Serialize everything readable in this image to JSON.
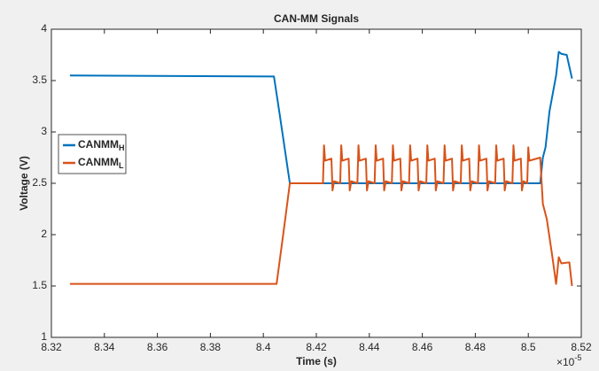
{
  "chart_data": {
    "type": "line",
    "title": "CAN-MM Signals",
    "x_label": "Time (s)",
    "y_label": "Voltage (V)",
    "x_multiplier": "×10",
    "x_multiplier_exponent": "-5",
    "xlim": [
      8.32,
      8.52
    ],
    "xticks": [
      8.32,
      8.34,
      8.36,
      8.38,
      8.4,
      8.42,
      8.44,
      8.46,
      8.48,
      8.5,
      8.52
    ],
    "ylim": [
      1,
      4
    ],
    "yticks": [
      1,
      1.5,
      2,
      2.5,
      3,
      3.5,
      4
    ],
    "grid": false,
    "legend": "left",
    "series": [
      {
        "name": "CANMM",
        "subscript": "H",
        "color": "#0072bd",
        "x": [
          8.327,
          8.404,
          8.406,
          8.41,
          8.5045,
          8.5055,
          8.5065,
          8.508,
          8.5105,
          8.5115,
          8.5125,
          8.5145,
          8.5165
        ],
        "values": [
          3.55,
          3.54,
          3.2,
          2.5,
          2.5,
          2.75,
          2.85,
          3.2,
          3.55,
          3.78,
          3.76,
          3.75,
          3.52
        ]
      },
      {
        "name": "CANMM",
        "subscript": "L",
        "color": "#d95319",
        "x": [
          8.327,
          8.405,
          8.408,
          8.41,
          8.4225,
          8.4229,
          8.4233,
          8.4257,
          8.4261,
          8.4267,
          8.429,
          8.4294,
          8.4298,
          8.4322,
          8.4326,
          8.4332,
          8.4355,
          8.4359,
          8.4363,
          8.4387,
          8.4391,
          8.4397,
          8.442,
          8.4424,
          8.4428,
          8.4452,
          8.4456,
          8.4462,
          8.4485,
          8.4489,
          8.4493,
          8.4517,
          8.4521,
          8.4527,
          8.455,
          8.4554,
          8.4558,
          8.4582,
          8.4586,
          8.4592,
          8.4615,
          8.4619,
          8.4623,
          8.4647,
          8.4651,
          8.4657,
          8.468,
          8.4684,
          8.4688,
          8.4712,
          8.4716,
          8.4722,
          8.4745,
          8.4749,
          8.4753,
          8.4777,
          8.4781,
          8.4787,
          8.481,
          8.4814,
          8.4818,
          8.4842,
          8.4846,
          8.4852,
          8.4875,
          8.4879,
          8.4883,
          8.4907,
          8.4911,
          8.4917,
          8.494,
          8.4944,
          8.4948,
          8.4972,
          8.4976,
          8.4982,
          8.4996,
          8.5,
          8.5004,
          8.5045,
          8.5055,
          8.507,
          8.509,
          8.5105,
          8.5115,
          8.5125,
          8.5155,
          8.5165
        ],
        "values": [
          1.52,
          1.52,
          2.1,
          2.5,
          2.5,
          2.87,
          2.72,
          2.74,
          2.43,
          2.52,
          2.5,
          2.87,
          2.72,
          2.74,
          2.43,
          2.52,
          2.5,
          2.87,
          2.72,
          2.74,
          2.43,
          2.52,
          2.5,
          2.87,
          2.72,
          2.74,
          2.43,
          2.52,
          2.5,
          2.87,
          2.72,
          2.74,
          2.43,
          2.52,
          2.5,
          2.87,
          2.72,
          2.74,
          2.43,
          2.52,
          2.5,
          2.87,
          2.72,
          2.74,
          2.43,
          2.52,
          2.5,
          2.87,
          2.72,
          2.74,
          2.43,
          2.52,
          2.5,
          2.87,
          2.72,
          2.74,
          2.43,
          2.52,
          2.5,
          2.87,
          2.72,
          2.74,
          2.43,
          2.52,
          2.5,
          2.87,
          2.72,
          2.74,
          2.43,
          2.52,
          2.5,
          2.87,
          2.72,
          2.74,
          2.43,
          2.52,
          2.5,
          2.85,
          2.72,
          2.75,
          2.3,
          2.15,
          1.8,
          1.52,
          1.78,
          1.72,
          1.73,
          1.5
        ]
      }
    ]
  }
}
